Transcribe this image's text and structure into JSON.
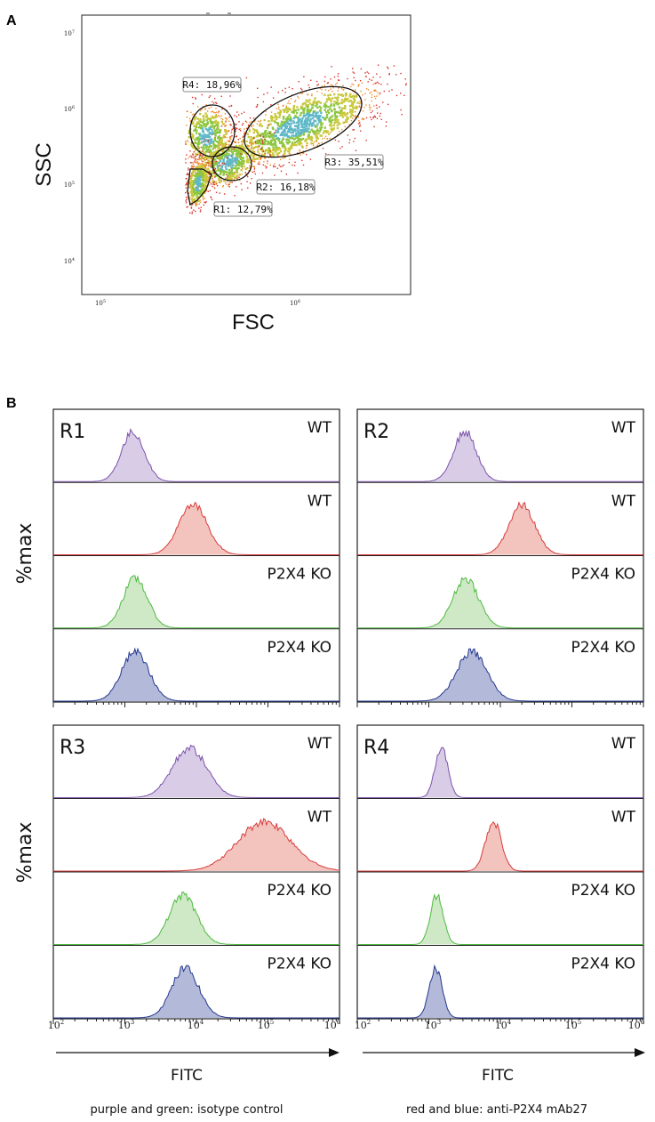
{
  "panels": {
    "a": "A",
    "b": "B"
  },
  "colors": {
    "purple": "#7b52ab",
    "purple_fill": "#d9cce6",
    "red": "#d93b3b",
    "red_fill": "#f3c3bd",
    "green": "#4dba3f",
    "green_fill": "#cfe9c7",
    "blue": "#25388f",
    "blue_fill": "#b2b9d9",
    "axis": "#222222"
  },
  "scatter": {
    "xlabel": "FSC",
    "ylabel": "SSC",
    "x_ticks": [
      {
        "base": "10",
        "exp": "5"
      },
      {
        "base": "10",
        "exp": "6"
      }
    ],
    "y_ticks": [
      {
        "base": "10",
        "exp": "7"
      },
      {
        "base": "10",
        "exp": "6"
      },
      {
        "base": "10",
        "exp": "5"
      },
      {
        "base": "10",
        "exp": "4"
      }
    ],
    "gates": [
      {
        "name": "R1",
        "label": "R1: 12,79%"
      },
      {
        "name": "R2",
        "label": "R2: 16,18%"
      },
      {
        "name": "R3",
        "label": "R3: 35,51%"
      },
      {
        "name": "R4",
        "label": "R4: 18,96%"
      }
    ]
  },
  "histograms": {
    "ylabel": "%max",
    "xlabel": "FITC",
    "x_ticks": [
      {
        "base": "10",
        "exp": "2"
      },
      {
        "base": "10",
        "exp": "3"
      },
      {
        "base": "10",
        "exp": "4"
      },
      {
        "base": "10",
        "exp": "5"
      },
      {
        "base": "10",
        "exp": "6"
      }
    ],
    "captions": {
      "left": "purple and green:  isotype control",
      "right": "red and blue: anti-P2X4 mAb27"
    }
  },
  "chart_data": [
    {
      "type": "scatter",
      "title": "",
      "xlabel": "FSC",
      "ylabel": "SSC",
      "x_scale": "log",
      "y_scale": "log",
      "xlim": [
        70000,
        3000000
      ],
      "ylim": [
        3000,
        12000000
      ],
      "gates": [
        {
          "name": "R1",
          "percent": "12,79%"
        },
        {
          "name": "R2",
          "percent": "16,18%"
        },
        {
          "name": "R3",
          "percent": "35,51%"
        },
        {
          "name": "R4",
          "percent": "18,96%"
        }
      ]
    },
    {
      "type": "area",
      "x_scale": "log",
      "xlabel": "FITC",
      "ylabel": "%max",
      "xlim": [
        100,
        1000000
      ],
      "legend": [
        "purple and green:  isotype control",
        "red and blue: anti-P2X4 mAb27"
      ],
      "series": [
        {
          "region": "R1",
          "name": "WT",
          "color": "purple",
          "stain": "isotype control",
          "peak": 1300,
          "spread": 0.16
        },
        {
          "region": "R1",
          "name": "WT",
          "color": "red",
          "stain": "anti-P2X4 mAb27",
          "peak": 9000,
          "spread": 0.2
        },
        {
          "region": "R1",
          "name": "P2X4 KO",
          "color": "green",
          "stain": "isotype control",
          "peak": 1400,
          "spread": 0.17
        },
        {
          "region": "R1",
          "name": "P2X4 KO",
          "color": "blue",
          "stain": "anti-P2X4 mAb27",
          "peak": 1400,
          "spread": 0.19
        },
        {
          "region": "R2",
          "name": "WT",
          "color": "purple",
          "stain": "isotype control",
          "peak": 3200,
          "spread": 0.16
        },
        {
          "region": "R2",
          "name": "WT",
          "color": "red",
          "stain": "anti-P2X4 mAb27",
          "peak": 20000,
          "spread": 0.18
        },
        {
          "region": "R2",
          "name": "P2X4 KO",
          "color": "green",
          "stain": "isotype control",
          "peak": 3300,
          "spread": 0.18
        },
        {
          "region": "R2",
          "name": "P2X4 KO",
          "color": "blue",
          "stain": "anti-P2X4 mAb27",
          "peak": 4000,
          "spread": 0.21
        },
        {
          "region": "R3",
          "name": "WT",
          "color": "purple",
          "stain": "isotype control",
          "peak": 8000,
          "spread": 0.24
        },
        {
          "region": "R3",
          "name": "WT",
          "color": "red",
          "stain": "anti-P2X4 mAb27",
          "peak": 90000,
          "spread": 0.37
        },
        {
          "region": "R3",
          "name": "P2X4 KO",
          "color": "green",
          "stain": "isotype control",
          "peak": 6500,
          "spread": 0.19
        },
        {
          "region": "R3",
          "name": "P2X4 KO",
          "color": "blue",
          "stain": "anti-P2X4 mAb27",
          "peak": 7000,
          "spread": 0.19
        },
        {
          "region": "R4",
          "name": "WT",
          "color": "purple",
          "stain": "isotype control",
          "peak": 1500,
          "spread": 0.09
        },
        {
          "region": "R4",
          "name": "WT",
          "color": "red",
          "stain": "anti-P2X4 mAb27",
          "peak": 8000,
          "spread": 0.11
        },
        {
          "region": "R4",
          "name": "P2X4 KO",
          "color": "green",
          "stain": "isotype control",
          "peak": 1300,
          "spread": 0.09
        },
        {
          "region": "R4",
          "name": "P2X4 KO",
          "color": "blue",
          "stain": "anti-P2X4 mAb27",
          "peak": 1250,
          "spread": 0.09
        }
      ]
    }
  ]
}
